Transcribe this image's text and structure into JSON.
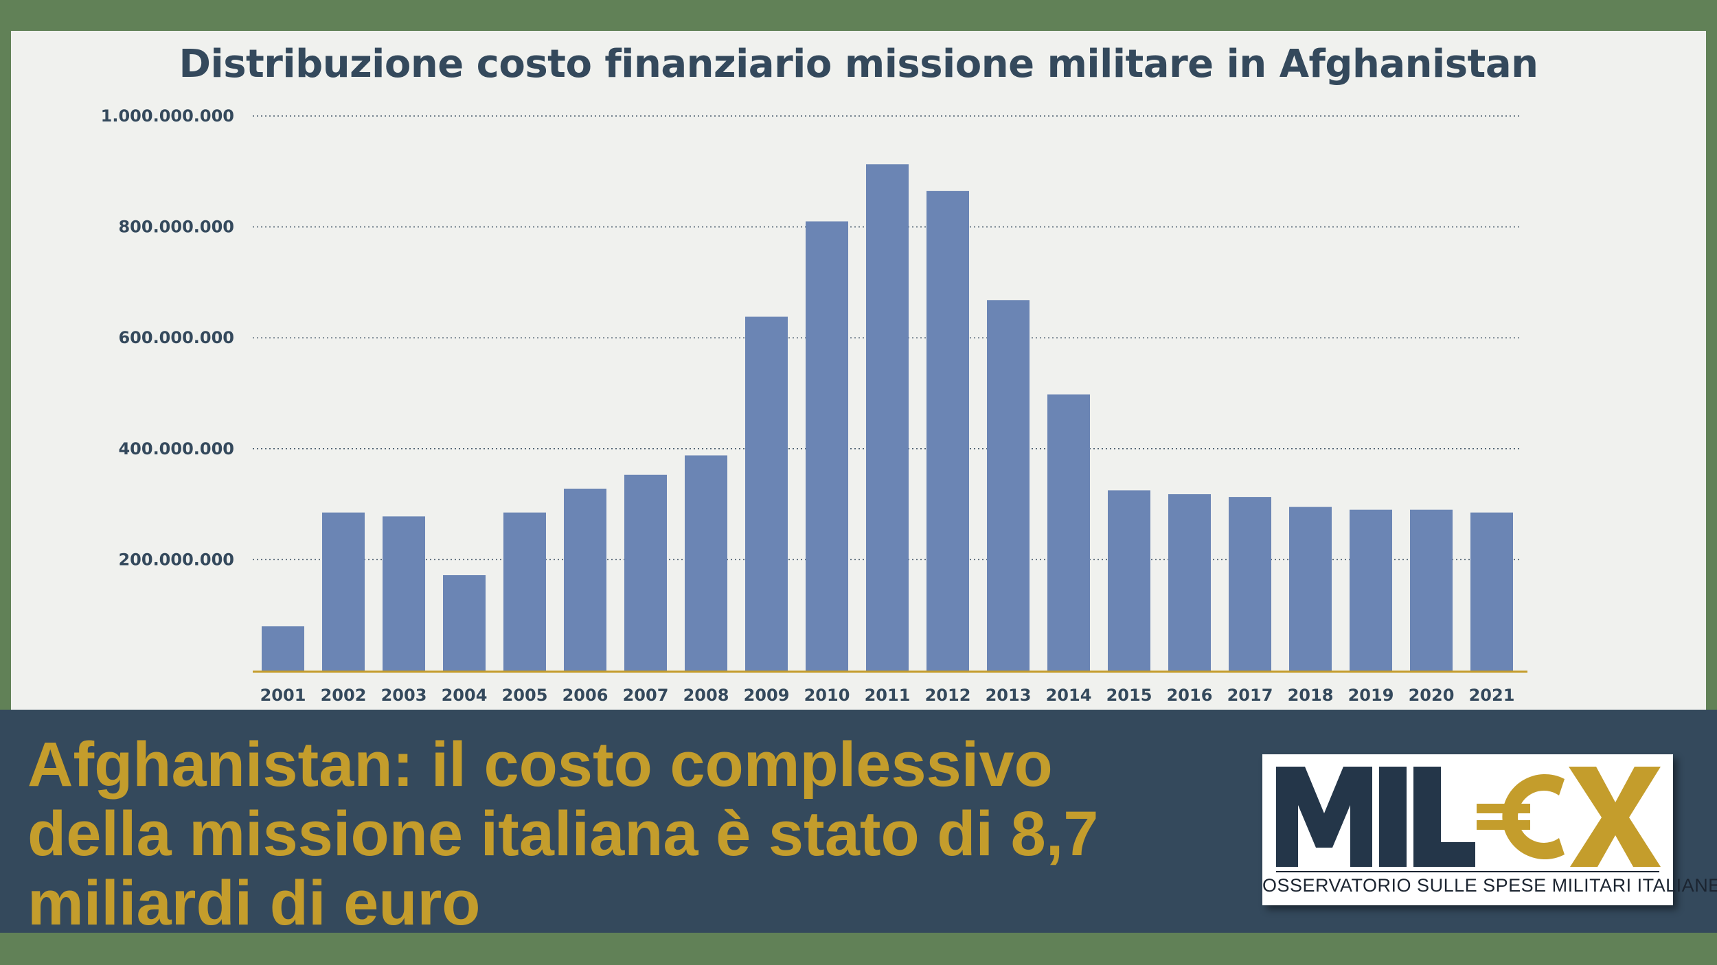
{
  "chart_data": {
    "type": "bar",
    "title": "Distribuzione costo finanziario missione militare in Afghanistan",
    "xlabel": "",
    "ylabel": "",
    "categories": [
      "2001",
      "2002",
      "2003",
      "2004",
      "2005",
      "2006",
      "2007",
      "2008",
      "2009",
      "2010",
      "2011",
      "2012",
      "2013",
      "2014",
      "2015",
      "2016",
      "2017",
      "2018",
      "2019",
      "2020",
      "2021"
    ],
    "values": [
      80000000,
      285000000,
      278000000,
      172000000,
      285000000,
      328000000,
      353000000,
      388000000,
      638000000,
      810000000,
      913000000,
      865000000,
      668000000,
      498000000,
      325000000,
      318000000,
      313000000,
      295000000,
      290000000,
      290000000,
      285000000
    ],
    "ylim": [
      0,
      1000000000
    ],
    "yticks": [
      200000000,
      400000000,
      600000000,
      800000000,
      1000000000
    ],
    "ytick_labels": [
      "200.000.000",
      "400.000.000",
      "600.000.000",
      "800.000.000",
      "1.000.000.000"
    ],
    "grid": true,
    "colors": {
      "bar": "#6b85b4",
      "axis": "#c49d2c",
      "grid": "#34495c",
      "text": "#34495c"
    }
  },
  "banner": {
    "headline_lines": [
      "Afghanistan: il costo complessivo",
      "della missione italiana è stato di 8,7",
      "miliardi di euro"
    ],
    "color": "#c49d2c",
    "background": "#34495c"
  },
  "logo": {
    "mark_text": "MIL€X",
    "subtitle": "OSSERVATORIO SULLE SPESE MILITARI ITALIANE",
    "colors": {
      "dark": "#243649",
      "gold": "#c49d2c"
    }
  },
  "frame_color": "#618157"
}
